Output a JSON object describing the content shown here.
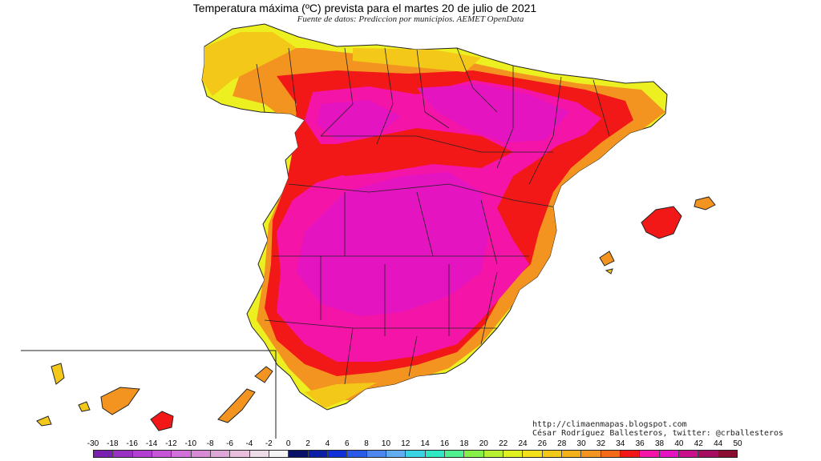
{
  "title": "Temperatura máxima (ºC) prevista para el martes 20 de julio de 2021",
  "subtitle": "Fuente de datos: Prediccion por municipios. AEMET OpenData",
  "credits": {
    "url": "http://climaenmapas.blogspot.com",
    "author": "César Rodríguez Ballesteros, twitter: @crballesteros"
  },
  "legend": {
    "labels": [
      "-30",
      "-18",
      "-16",
      "-14",
      "-12",
      "-10",
      "-8",
      "-6",
      "-4",
      "-2",
      "0",
      "2",
      "4",
      "6",
      "8",
      "10",
      "12",
      "14",
      "16",
      "18",
      "20",
      "22",
      "24",
      "26",
      "28",
      "30",
      "32",
      "34",
      "36",
      "38",
      "40",
      "42",
      "44",
      "50"
    ],
    "colors": [
      "#7b1fb0",
      "#9a2fc4",
      "#b23fd2",
      "#c655d8",
      "#d070d8",
      "#d88ad4",
      "#dfa6d8",
      "#e8c0de",
      "#eddbe8",
      "#f4f4f4",
      "#081068",
      "#0a1ea8",
      "#1030d8",
      "#2a5ae8",
      "#4c86ee",
      "#60aef0",
      "#3ad4e4",
      "#30e8c4",
      "#50f090",
      "#86f048",
      "#b6f030",
      "#e0f020",
      "#f4e018",
      "#f4c818",
      "#f4b018",
      "#f49420",
      "#f46a18",
      "#f21818",
      "#f414a8",
      "#e414c0",
      "#c8108c",
      "#a60c60",
      "#8a0c30"
    ]
  },
  "map": {
    "colors": {
      "sea": "#ffffff",
      "band_20_22": "#ecf020",
      "band_24_26": "#f4c818",
      "band_28_30": "#f49420",
      "band_32_34": "#f21818",
      "band_34_36": "#f414a8",
      "band_36_38": "#e414c0",
      "border": "#222222"
    },
    "icons": [
      "spain-map",
      "balearic-islands",
      "canary-islands-inset"
    ]
  }
}
